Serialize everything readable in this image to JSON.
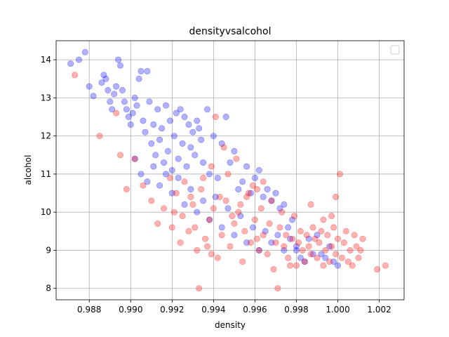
{
  "chart_data": {
    "type": "scatter",
    "title": "densityvsalcohol",
    "xlabel": "density",
    "ylabel": "alcohol",
    "xlim": [
      0.9864,
      1.0032
    ],
    "ylim": [
      7.7,
      14.5
    ],
    "xticks": [
      0.988,
      0.99,
      0.992,
      0.994,
      0.996,
      0.998,
      1.0,
      1.002
    ],
    "xtick_labels": [
      "0.988",
      "0.990",
      "0.992",
      "0.994",
      "0.996",
      "0.998",
      "1.000",
      "1.002"
    ],
    "yticks": [
      8,
      9,
      10,
      11,
      12,
      13,
      14
    ],
    "ytick_labels": [
      "8",
      "9",
      "10",
      "11",
      "12",
      "13",
      "14"
    ],
    "grid": true,
    "legend": "top-right (empty)",
    "series": [
      {
        "color": "#0000ff",
        "opacity": 0.3,
        "points": [
          [
            0.9871,
            13.9
          ],
          [
            0.9875,
            14.0
          ],
          [
            0.9878,
            14.2
          ],
          [
            0.988,
            13.3
          ],
          [
            0.9882,
            13.05
          ],
          [
            0.9886,
            13.4
          ],
          [
            0.9887,
            13.6
          ],
          [
            0.9888,
            13.5
          ],
          [
            0.9889,
            13.2
          ],
          [
            0.989,
            12.9
          ],
          [
            0.9891,
            12.7
          ],
          [
            0.9892,
            13.1
          ],
          [
            0.9893,
            13.3
          ],
          [
            0.9894,
            14.0
          ],
          [
            0.9895,
            13.85
          ],
          [
            0.9896,
            13.2
          ],
          [
            0.9897,
            12.9
          ],
          [
            0.9898,
            12.7
          ],
          [
            0.9899,
            12.5
          ],
          [
            0.99,
            12.3
          ],
          [
            0.9901,
            12.6
          ],
          [
            0.9902,
            13.0
          ],
          [
            0.9903,
            12.8
          ],
          [
            0.9904,
            13.5
          ],
          [
            0.9905,
            13.7
          ],
          [
            0.9906,
            12.4
          ],
          [
            0.9907,
            12.1
          ],
          [
            0.9908,
            13.7
          ],
          [
            0.9909,
            12.9
          ],
          [
            0.991,
            11.8
          ],
          [
            0.9911,
            12.3
          ],
          [
            0.9912,
            11.5
          ],
          [
            0.9913,
            12.7
          ],
          [
            0.9914,
            11.9
          ],
          [
            0.9915,
            12.2
          ],
          [
            0.9916,
            11.3
          ],
          [
            0.9917,
            12.8
          ],
          [
            0.9918,
            11.6
          ],
          [
            0.9919,
            12.4
          ],
          [
            0.992,
            11.1
          ],
          [
            0.9921,
            12.0
          ],
          [
            0.9922,
            12.6
          ],
          [
            0.9923,
            11.4
          ],
          [
            0.9924,
            12.7
          ],
          [
            0.9925,
            11.8
          ],
          [
            0.9926,
            12.5
          ],
          [
            0.9927,
            11.2
          ],
          [
            0.9928,
            12.3
          ],
          [
            0.9929,
            11.7
          ],
          [
            0.993,
            12.1
          ],
          [
            0.9931,
            11.5
          ],
          [
            0.9932,
            12.4
          ],
          [
            0.9933,
            12.2
          ],
          [
            0.9934,
            11.9
          ],
          [
            0.9935,
            11.3
          ],
          [
            0.9937,
            12.7
          ],
          [
            0.9938,
            11.0
          ],
          [
            0.994,
            12.0
          ],
          [
            0.9942,
            10.9
          ],
          [
            0.9944,
            11.8
          ],
          [
            0.9946,
            12.5
          ],
          [
            0.9948,
            11.3
          ],
          [
            0.995,
            11.6
          ],
          [
            0.9952,
            10.6
          ],
          [
            0.9954,
            10.8
          ],
          [
            0.9956,
            11.2
          ],
          [
            0.9958,
            10.5
          ],
          [
            0.996,
            10.9
          ],
          [
            0.9962,
            11.1
          ],
          [
            0.9964,
            10.4
          ],
          [
            0.9966,
            10.6
          ],
          [
            0.9968,
            10.3
          ],
          [
            0.997,
            10.5
          ],
          [
            0.9972,
            10.1
          ],
          [
            0.9974,
            10.2
          ],
          [
            0.9976,
            9.6
          ],
          [
            0.9978,
            9.8
          ],
          [
            0.998,
            9.1
          ],
          [
            0.9982,
            8.8
          ],
          [
            0.9984,
            8.7
          ],
          [
            0.9986,
            9.3
          ],
          [
            0.9988,
            8.9
          ],
          [
            0.999,
            9.4
          ],
          [
            0.9992,
            8.9
          ],
          [
            0.9994,
            8.8
          ],
          [
            0.9996,
            9.1
          ],
          [
            0.9998,
            8.7
          ],
          [
            1.0,
            8.6
          ],
          [
            0.9902,
            11.4
          ],
          [
            0.9905,
            11.0
          ],
          [
            0.9908,
            10.8
          ],
          [
            0.9911,
            11.2
          ],
          [
            0.9914,
            10.7
          ],
          [
            0.9917,
            11.0
          ],
          [
            0.992,
            10.5
          ],
          [
            0.9923,
            10.9
          ],
          [
            0.9926,
            10.2
          ],
          [
            0.9929,
            10.6
          ],
          [
            0.9932,
            10.0
          ],
          [
            0.9935,
            10.3
          ],
          [
            0.9938,
            9.8
          ],
          [
            0.9941,
            10.4
          ],
          [
            0.9944,
            9.6
          ],
          [
            0.9947,
            10.1
          ],
          [
            0.995,
            9.4
          ],
          [
            0.9953,
            9.9
          ],
          [
            0.9956,
            9.2
          ],
          [
            0.9959,
            9.6
          ],
          [
            0.9962,
            9.0
          ],
          [
            0.9965,
            9.5
          ],
          [
            0.9968,
            9.2
          ],
          [
            0.9971,
            9.4
          ],
          [
            0.9974,
            9.0
          ],
          [
            0.9977,
            9.3
          ],
          [
            0.998,
            9.0
          ]
        ]
      },
      {
        "color": "#ff0000",
        "opacity": 0.3,
        "points": [
          [
            0.9873,
            13.6
          ],
          [
            0.9885,
            12.0
          ],
          [
            0.9893,
            12.6
          ],
          [
            0.9895,
            11.5
          ],
          [
            0.9898,
            10.6
          ],
          [
            0.9902,
            11.4
          ],
          [
            0.9906,
            10.7
          ],
          [
            0.991,
            10.3
          ],
          [
            0.9913,
            9.7
          ],
          [
            0.9916,
            10.1
          ],
          [
            0.992,
            9.6
          ],
          [
            0.9922,
            10.5
          ],
          [
            0.9924,
            9.2
          ],
          [
            0.9926,
            10.8
          ],
          [
            0.9928,
            9.5
          ],
          [
            0.993,
            10.2
          ],
          [
            0.9932,
            9.0
          ],
          [
            0.9933,
            8.0
          ],
          [
            0.9934,
            10.6
          ],
          [
            0.9936,
            9.3
          ],
          [
            0.9938,
            9.8
          ],
          [
            0.994,
            10.1
          ],
          [
            0.9941,
            12.5
          ],
          [
            0.9942,
            8.8
          ],
          [
            0.9944,
            9.4
          ],
          [
            0.9945,
            11.7
          ],
          [
            0.9946,
            10.3
          ],
          [
            0.9948,
            9.1
          ],
          [
            0.995,
            9.7
          ],
          [
            0.9951,
            11.4
          ],
          [
            0.9952,
            10.0
          ],
          [
            0.9954,
            8.7
          ],
          [
            0.9955,
            9.5
          ],
          [
            0.9956,
            10.4
          ],
          [
            0.9958,
            9.2
          ],
          [
            0.9959,
            10.7
          ],
          [
            0.996,
            9.8
          ],
          [
            0.9962,
            9.0
          ],
          [
            0.9963,
            10.1
          ],
          [
            0.9964,
            9.4
          ],
          [
            0.9966,
            8.9
          ],
          [
            0.9967,
            9.7
          ],
          [
            0.9968,
            10.3
          ],
          [
            0.9969,
            8.5
          ],
          [
            0.997,
            9.2
          ],
          [
            0.9971,
            8.0
          ],
          [
            0.9972,
            9.6
          ],
          [
            0.9973,
            10.0
          ],
          [
            0.9974,
            9.1
          ],
          [
            0.9975,
            9.4
          ],
          [
            0.9976,
            8.8
          ],
          [
            0.9978,
            9.3
          ],
          [
            0.9979,
            9.9
          ],
          [
            0.998,
            8.6
          ],
          [
            0.9981,
            9.2
          ],
          [
            0.9982,
            9.5
          ],
          [
            0.9983,
            9.0
          ],
          [
            0.9984,
            8.7
          ],
          [
            0.9985,
            9.4
          ],
          [
            0.9986,
            9.1
          ],
          [
            0.9987,
            8.9
          ],
          [
            0.9988,
            9.6
          ],
          [
            0.9989,
            9.3
          ],
          [
            0.999,
            8.8
          ],
          [
            0.9991,
            9.2
          ],
          [
            0.9992,
            9.5
          ],
          [
            0.9993,
            8.6
          ],
          [
            0.9994,
            9.0
          ],
          [
            0.9995,
            9.4
          ],
          [
            0.9996,
            8.7
          ],
          [
            0.9997,
            9.1
          ],
          [
            0.9998,
            9.6
          ],
          [
            0.9999,
            8.9
          ],
          [
            1.0,
            9.3
          ],
          [
            1.0001,
            11.0
          ],
          [
            1.0002,
            8.8
          ],
          [
            1.0003,
            9.2
          ],
          [
            1.0004,
            9.5
          ],
          [
            1.0005,
            8.7
          ],
          [
            1.0006,
            9.0
          ],
          [
            1.0008,
            9.4
          ],
          [
            1.0009,
            9.1
          ],
          [
            1.001,
            8.8
          ],
          [
            1.0012,
            9.3
          ],
          [
            1.0019,
            8.5
          ],
          [
            1.0023,
            8.6
          ],
          [
            0.9999,
            10.4
          ],
          [
            0.9957,
            10.5
          ],
          [
            0.9961,
            10.6
          ],
          [
            0.9964,
            10.8
          ],
          [
            0.9935,
            10.9
          ],
          [
            0.9939,
            11.2
          ],
          [
            0.9943,
            10.4
          ],
          [
            0.9947,
            11.0
          ],
          [
            0.9953,
            10.2
          ],
          [
            0.9919,
            10.9
          ],
          [
            0.9921,
            10.0
          ],
          [
            0.9925,
            9.9
          ],
          [
            0.9929,
            10.4
          ],
          [
            0.9931,
            9.6
          ],
          [
            0.9937,
            9.1
          ],
          [
            0.9939,
            8.9
          ],
          [
            0.9949,
            9.9
          ],
          [
            0.9961,
            9.3
          ],
          [
            0.9977,
            8.6
          ],
          [
            0.9987,
            10.2
          ],
          [
            0.9993,
            9.8
          ],
          [
            0.9997,
            9.9
          ],
          [
            1.0007,
            8.6
          ],
          [
            1.0011,
            9.0
          ]
        ]
      }
    ]
  }
}
